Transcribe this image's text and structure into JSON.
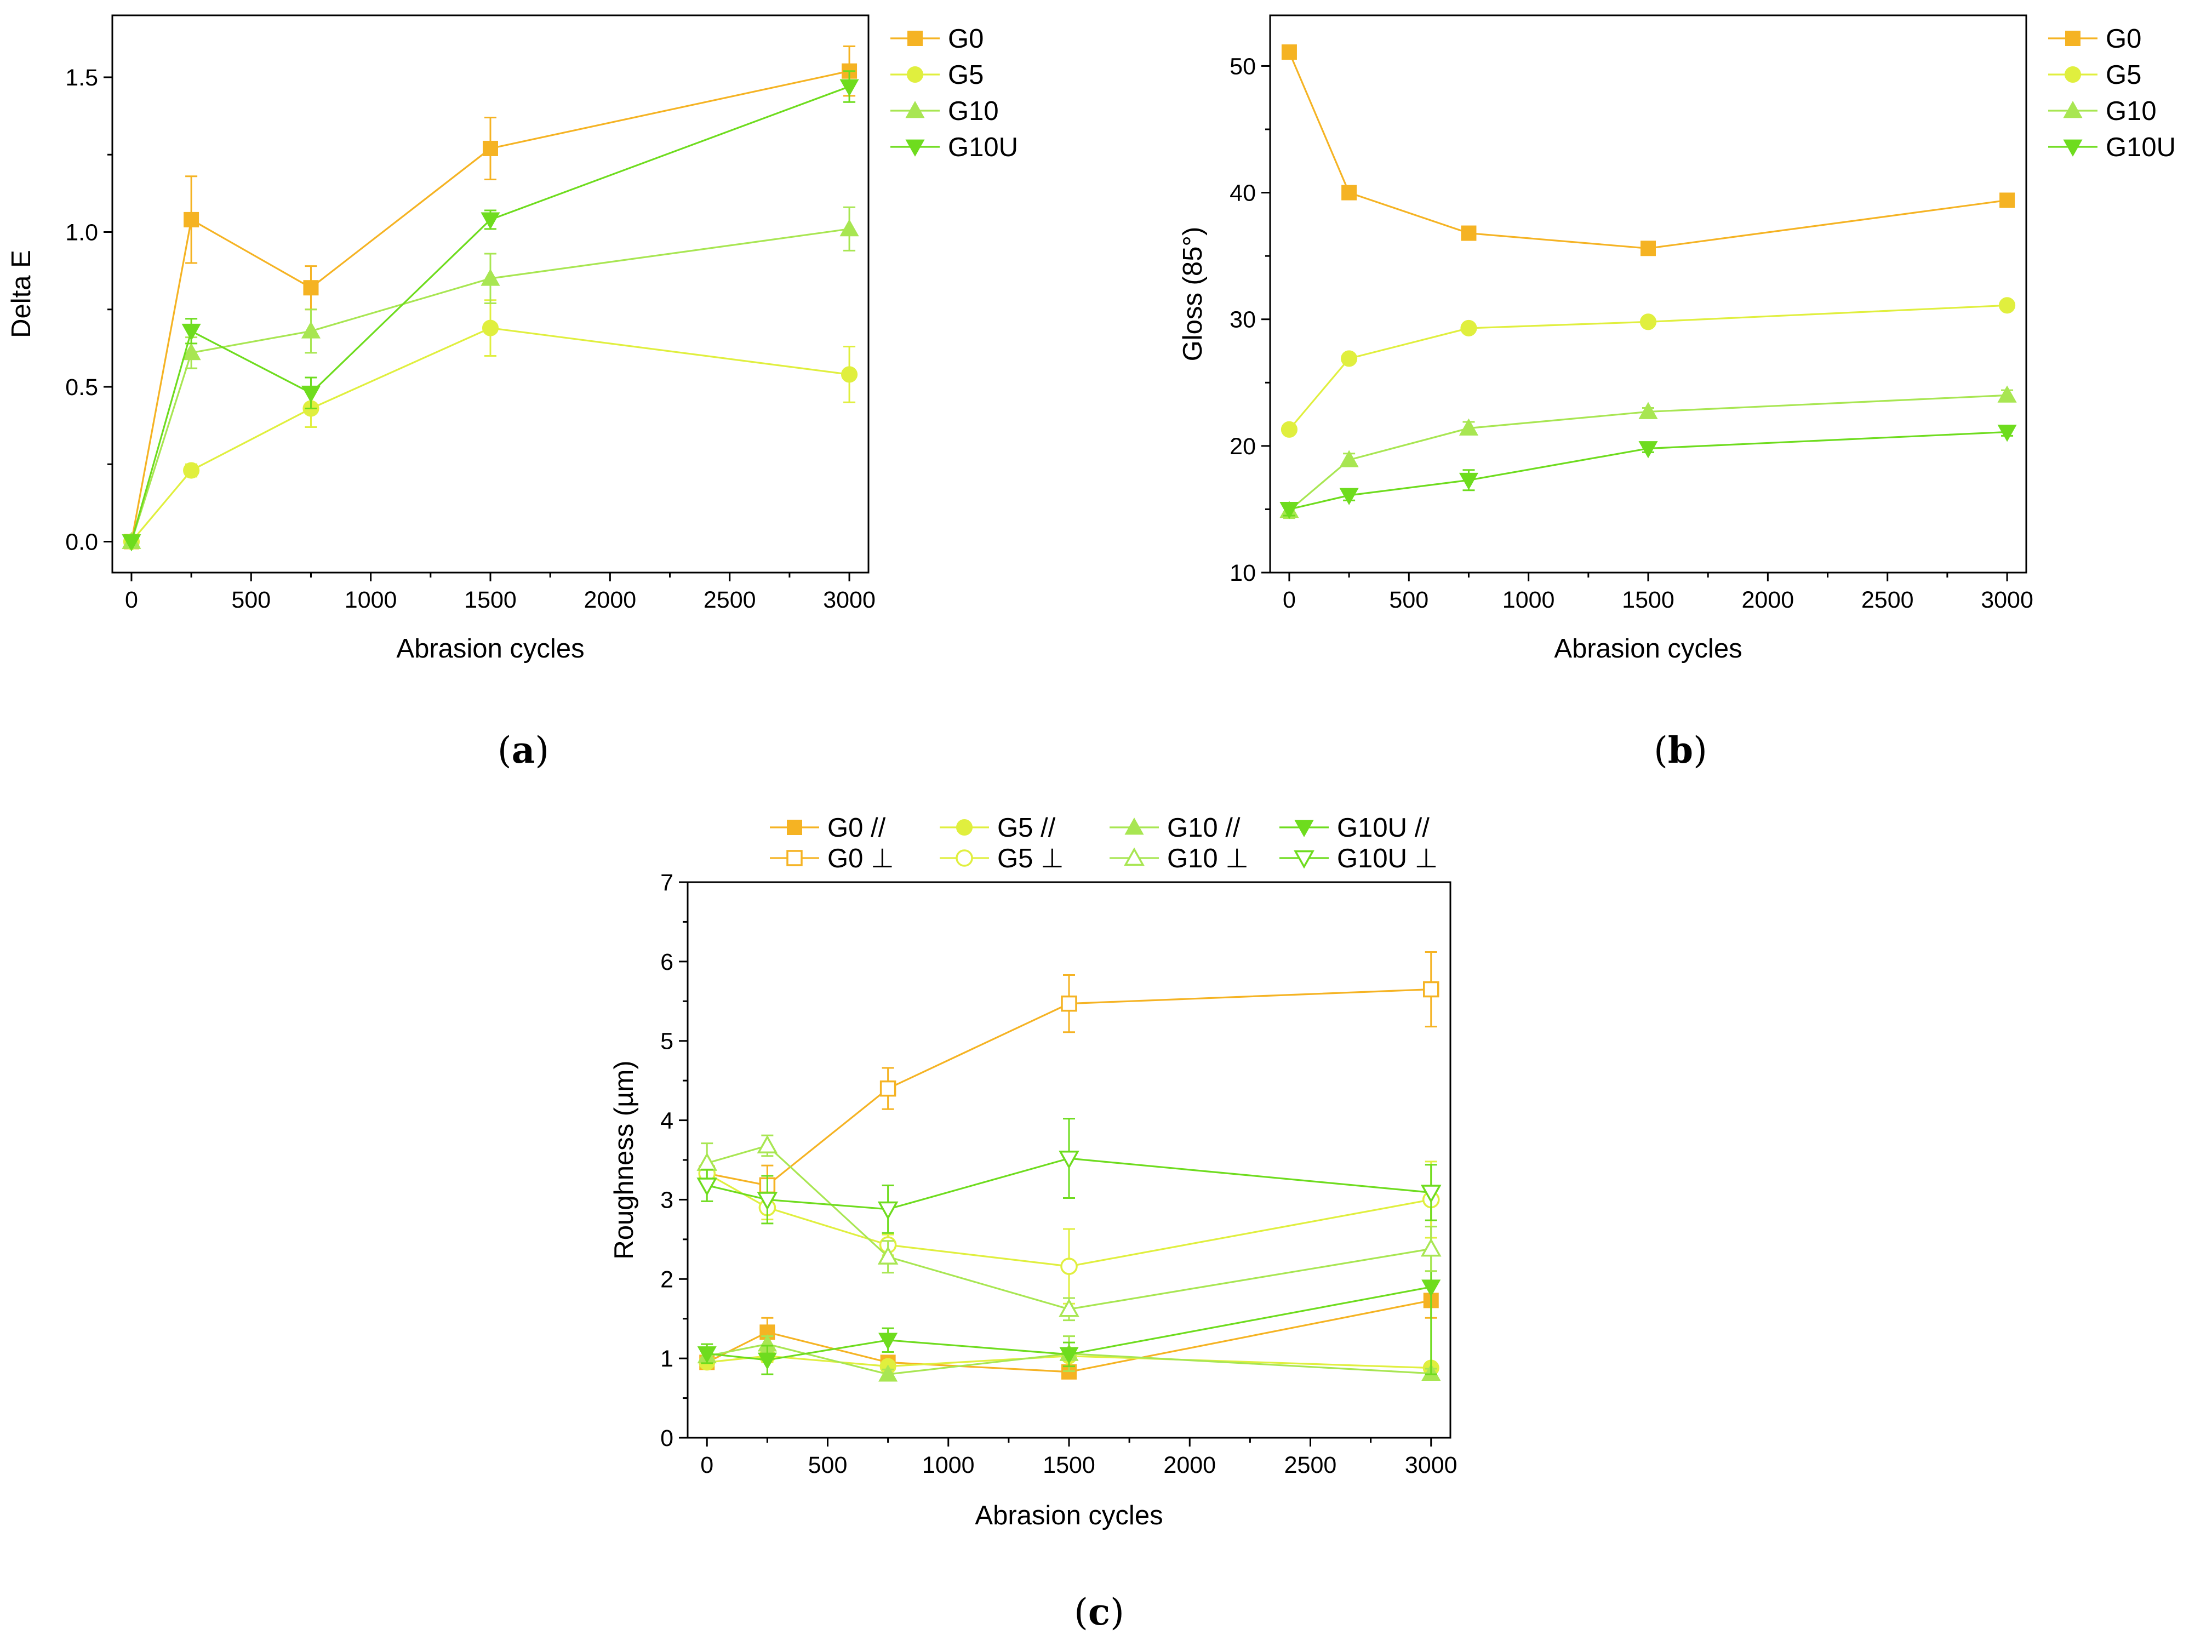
{
  "colors": {
    "G0": "#f5b323",
    "G5": "#e0ef3e",
    "G10": "#a8e652",
    "G10U": "#6edc1e"
  },
  "marker_icons": {
    "G0": "square-marker-icon",
    "G5": "circle-marker-icon",
    "G10": "triangle-up-marker-icon",
    "G10U": "triangle-down-marker-icon"
  },
  "captions": {
    "a": "a",
    "b": "b",
    "c": "c"
  },
  "chart_data": [
    {
      "id": "a",
      "type": "line",
      "xlabel": "Abrasion cycles",
      "ylabel": "Delta E",
      "xlim": [
        -80,
        3080
      ],
      "ylim": [
        -0.1,
        1.7
      ],
      "xticks": [
        0,
        500,
        1000,
        1500,
        2000,
        2500,
        3000
      ],
      "yticks": [
        0.0,
        0.5,
        1.0,
        1.5
      ],
      "ytick_labels": [
        "0.0",
        "0.5",
        "1.0",
        "1.5"
      ],
      "x": [
        0,
        250,
        750,
        1500,
        3000
      ],
      "series": [
        {
          "name": "G0",
          "label": "G0",
          "key": "G0",
          "marker": "square",
          "filled": true,
          "values": [
            0.0,
            1.04,
            0.82,
            1.27,
            1.52
          ],
          "errors": [
            0.0,
            0.14,
            0.07,
            0.1,
            0.08
          ]
        },
        {
          "name": "G5",
          "label": "G5",
          "key": "G5",
          "marker": "circle",
          "filled": true,
          "values": [
            0.0,
            0.23,
            0.43,
            0.69,
            0.54
          ],
          "errors": [
            0.0,
            0.02,
            0.06,
            0.09,
            0.09
          ]
        },
        {
          "name": "G10",
          "label": "G10",
          "key": "G10",
          "marker": "triangle-up",
          "filled": true,
          "values": [
            0.0,
            0.61,
            0.68,
            0.85,
            1.01
          ],
          "errors": [
            0.0,
            0.05,
            0.07,
            0.08,
            0.07
          ]
        },
        {
          "name": "G10U",
          "label": "G10U",
          "key": "G10U",
          "marker": "triangle-down",
          "filled": true,
          "values": [
            0.0,
            0.68,
            0.48,
            1.04,
            1.47
          ],
          "errors": [
            0.0,
            0.04,
            0.05,
            0.03,
            0.05
          ]
        }
      ]
    },
    {
      "id": "b",
      "type": "line",
      "xlabel": "Abrasion cycles",
      "ylabel": "Gloss (85°)",
      "xlim": [
        -80,
        3080
      ],
      "ylim": [
        10,
        54
      ],
      "xticks": [
        0,
        500,
        1000,
        1500,
        2000,
        2500,
        3000
      ],
      "yticks": [
        10,
        20,
        30,
        40,
        50
      ],
      "ytick_labels": [
        "10",
        "20",
        "30",
        "40",
        "50"
      ],
      "x": [
        0,
        250,
        750,
        1500,
        3000
      ],
      "series": [
        {
          "name": "G0",
          "label": "G0",
          "key": "G0",
          "marker": "square",
          "filled": true,
          "values": [
            51.1,
            40.0,
            36.8,
            35.6,
            39.4
          ],
          "errors": [
            0.2,
            0.3,
            0.3,
            0.3,
            0.3
          ]
        },
        {
          "name": "G5",
          "label": "G5",
          "key": "G5",
          "marker": "circle",
          "filled": true,
          "values": [
            21.3,
            26.9,
            29.3,
            29.8,
            31.1
          ],
          "errors": [
            0.3,
            0.3,
            0.3,
            0.3,
            0.3
          ]
        },
        {
          "name": "G10",
          "label": "G10",
          "key": "G10",
          "marker": "triangle-up",
          "filled": true,
          "values": [
            14.9,
            18.9,
            21.4,
            22.7,
            24.0
          ],
          "errors": [
            0.6,
            0.5,
            0.5,
            0.3,
            0.4
          ]
        },
        {
          "name": "G10U",
          "label": "G10U",
          "key": "G10U",
          "marker": "triangle-down",
          "filled": true,
          "values": [
            15.0,
            16.1,
            17.3,
            19.8,
            21.1
          ],
          "errors": [
            0.5,
            0.4,
            0.8,
            0.3,
            0.3
          ]
        }
      ]
    },
    {
      "id": "c",
      "type": "line",
      "xlabel": "Abrasion cycles",
      "ylabel": "Roughness (µm)",
      "xlim": [
        -80,
        3080
      ],
      "ylim": [
        0,
        7
      ],
      "xticks": [
        0,
        500,
        1000,
        1500,
        2000,
        2500,
        3000
      ],
      "yticks": [
        0,
        1,
        2,
        3,
        4,
        5,
        6,
        7
      ],
      "ytick_labels": [
        "0",
        "1",
        "2",
        "3",
        "4",
        "5",
        "6",
        "7"
      ],
      "x": [
        0,
        250,
        750,
        1500,
        3000
      ],
      "series": [
        {
          "name": "G0 //",
          "label": "G0 //",
          "key": "G0",
          "marker": "square",
          "filled": true,
          "values": [
            0.95,
            1.33,
            0.95,
            0.83,
            1.73
          ],
          "errors": [
            0.06,
            0.18,
            0.06,
            0.05,
            0.22
          ]
        },
        {
          "name": "G5 //",
          "label": "G5 //",
          "key": "G5",
          "marker": "circle",
          "filled": true,
          "values": [
            0.95,
            1.03,
            0.9,
            1.03,
            0.88
          ],
          "errors": [
            0.06,
            0.08,
            0.06,
            0.06,
            0.06
          ]
        },
        {
          "name": "G10 //",
          "label": "G10 //",
          "key": "G10",
          "marker": "triangle-up",
          "filled": true,
          "values": [
            1.03,
            1.18,
            0.8,
            1.06,
            0.81
          ],
          "errors": [
            0.08,
            0.1,
            0.06,
            0.22,
            0.06
          ]
        },
        {
          "name": "G10U //",
          "label": "G10U //",
          "key": "G10U",
          "marker": "triangle-down",
          "filled": true,
          "values": [
            1.06,
            0.98,
            1.23,
            1.05,
            1.9
          ],
          "errors": [
            0.12,
            0.18,
            0.15,
            0.15,
            1.1
          ]
        },
        {
          "name": "G0 ⊥",
          "label": "G0 ⊥",
          "key": "G0",
          "marker": "square",
          "filled": false,
          "values": [
            3.33,
            3.18,
            4.4,
            5.47,
            5.65
          ],
          "errors": [
            0.12,
            0.25,
            0.26,
            0.36,
            0.47
          ]
        },
        {
          "name": "G5 ⊥",
          "label": "G5 ⊥",
          "key": "G5",
          "marker": "circle",
          "filled": false,
          "values": [
            3.33,
            2.9,
            2.43,
            2.16,
            3.0
          ],
          "errors": [
            0.12,
            0.15,
            0.13,
            0.47,
            0.48
          ]
        },
        {
          "name": "G10 ⊥",
          "label": "G10 ⊥",
          "key": "G10",
          "marker": "triangle-up",
          "filled": false,
          "values": [
            3.46,
            3.68,
            2.28,
            1.62,
            2.38
          ],
          "errors": [
            0.25,
            0.13,
            0.2,
            0.14,
            0.28
          ]
        },
        {
          "name": "G10U ⊥",
          "label": "G10U ⊥",
          "key": "G10U",
          "marker": "triangle-down",
          "filled": false,
          "values": [
            3.18,
            3.0,
            2.88,
            3.52,
            3.09
          ],
          "errors": [
            0.2,
            0.3,
            0.3,
            0.5,
            0.35
          ]
        }
      ]
    }
  ]
}
